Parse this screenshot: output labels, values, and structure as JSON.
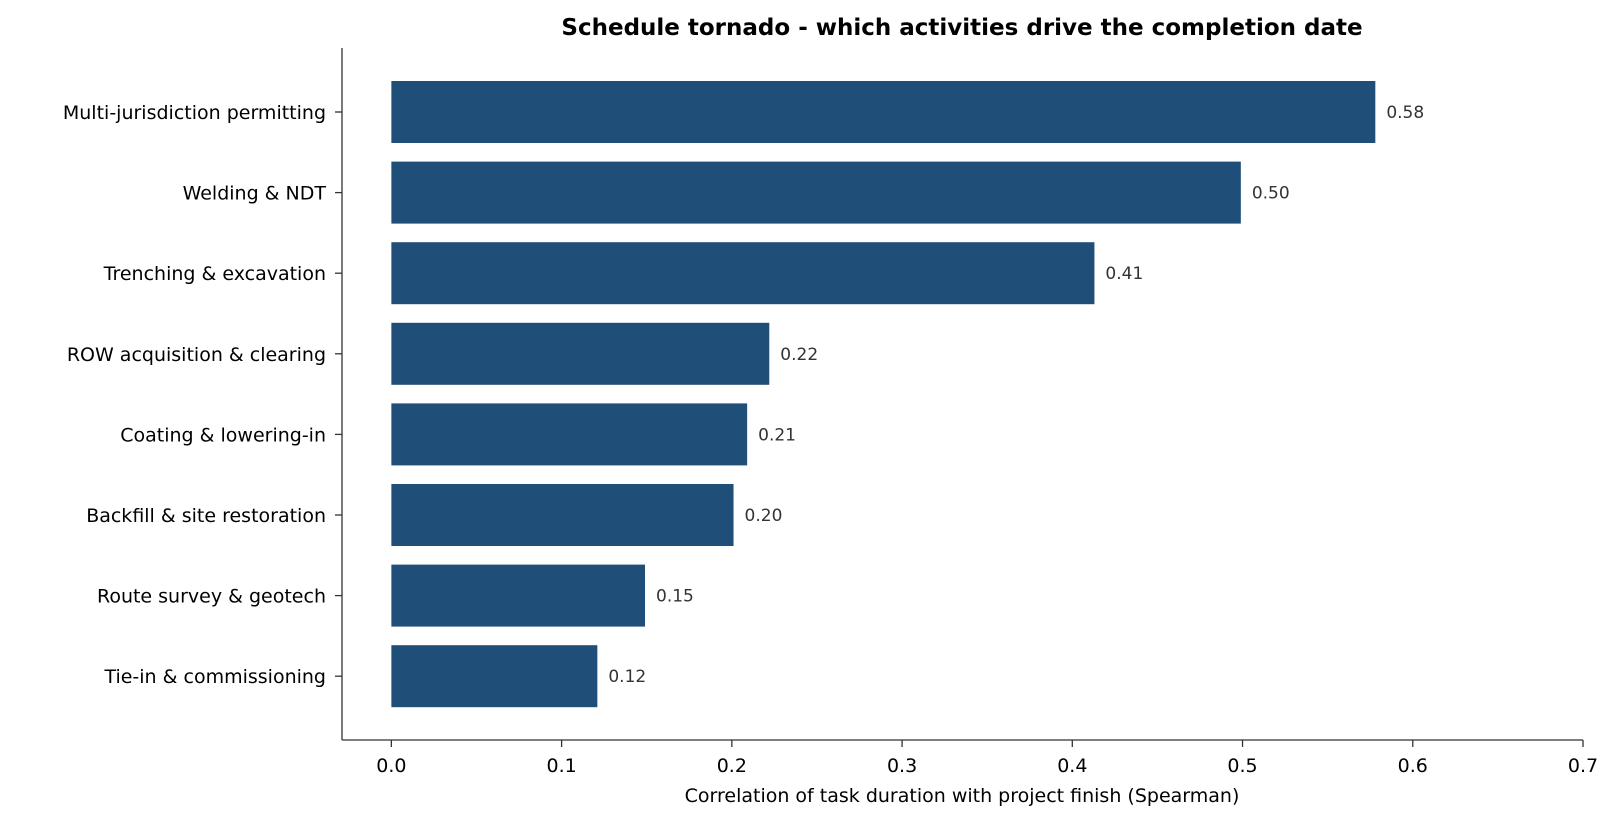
{
  "chart_data": {
    "type": "bar",
    "orientation": "horizontal",
    "title": "Schedule tornado - which activities drive the completion date",
    "xlabel": "Correlation of task duration with project finish (Spearman)",
    "ylabel": "",
    "categories": [
      "Multi-jurisdiction permitting",
      "Welding & NDT",
      "Trenching & excavation",
      "ROW acquisition & clearing",
      "Coating & lowering-in",
      "Backfill & site restoration",
      "Route survey & geotech",
      "Tie-in & commissioning"
    ],
    "values": [
      0.578,
      0.499,
      0.413,
      0.222,
      0.209,
      0.201,
      0.149,
      0.121
    ],
    "value_labels": [
      "0.58",
      "0.50",
      "0.41",
      "0.22",
      "0.21",
      "0.20",
      "0.15",
      "0.12"
    ],
    "xlim": [
      -0.029,
      0.7
    ],
    "xticks": [
      0.0,
      0.1,
      0.2,
      0.3,
      0.4,
      0.5,
      0.6,
      0.7
    ],
    "xtick_labels": [
      "0.0",
      "0.1",
      "0.2",
      "0.3",
      "0.4",
      "0.5",
      "0.6",
      "0.7"
    ],
    "bar_color": "#1f4e79",
    "grid": false,
    "legend": "none"
  }
}
